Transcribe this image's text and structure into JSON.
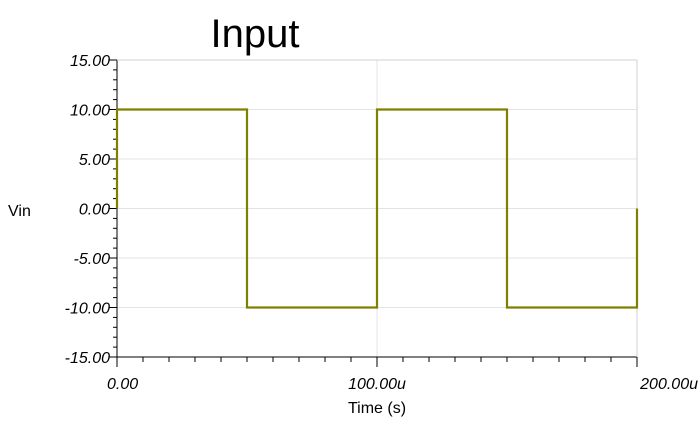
{
  "chart_data": {
    "type": "line",
    "title": "Input",
    "xlabel": "Time (s)",
    "ylabel": "Vin",
    "xlim": [
      0,
      0.0002
    ],
    "ylim": [
      -15,
      15
    ],
    "x_ticks": [
      0,
      0.0001,
      0.0002
    ],
    "x_tick_labels": [
      "0.00",
      "100.00u",
      "200.00u"
    ],
    "y_ticks": [
      15,
      10,
      5,
      0,
      -5,
      -10,
      -15
    ],
    "y_tick_labels": [
      "15.00",
      "10.00",
      "5.00",
      "0.00",
      "-5.00",
      "-10.00",
      "-15.00"
    ],
    "grid": true,
    "series_color": "#808000",
    "series": [
      {
        "x": [
          0,
          0,
          5e-05,
          5e-05,
          0.0001,
          0.0001,
          0.00015,
          0.00015,
          0.0002,
          0.0002
        ],
        "y": [
          0,
          10,
          10,
          -10,
          -10,
          10,
          10,
          -10,
          -10,
          0
        ]
      }
    ]
  }
}
